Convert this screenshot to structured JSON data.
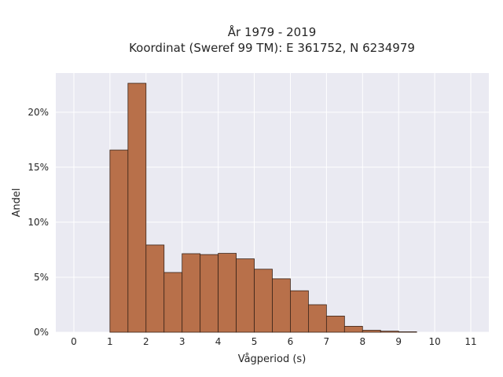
{
  "chart_data": {
    "type": "bar",
    "title": [
      "År 1979 - 2019",
      "Koordinat (Sweref 99 TM): E 361752, N 6234979"
    ],
    "xlabel": "Vågperiod (s)",
    "ylabel": "Andel",
    "xlim": [
      -0.5,
      11.5
    ],
    "ylim": [
      0,
      0.2356
    ],
    "xticks": [
      0,
      1,
      2,
      3,
      4,
      5,
      6,
      7,
      8,
      9,
      10,
      11
    ],
    "xtick_labels": [
      "0",
      "1",
      "2",
      "3",
      "4",
      "5",
      "6",
      "7",
      "8",
      "9",
      "10",
      "11"
    ],
    "yticks": [
      0,
      0.05,
      0.1,
      0.15,
      0.2
    ],
    "ytick_labels": [
      "0%",
      "5%",
      "10%",
      "15%",
      "20%"
    ],
    "bin_width": 0.5,
    "bins": [
      {
        "start": 1.0,
        "value": 0.1656
      },
      {
        "start": 1.5,
        "value": 0.2263
      },
      {
        "start": 2.0,
        "value": 0.0793
      },
      {
        "start": 2.5,
        "value": 0.0543
      },
      {
        "start": 3.0,
        "value": 0.0714
      },
      {
        "start": 3.5,
        "value": 0.0706
      },
      {
        "start": 4.0,
        "value": 0.0717
      },
      {
        "start": 4.5,
        "value": 0.0667
      },
      {
        "start": 5.0,
        "value": 0.0573
      },
      {
        "start": 5.5,
        "value": 0.0486
      },
      {
        "start": 6.0,
        "value": 0.0377
      },
      {
        "start": 6.5,
        "value": 0.025
      },
      {
        "start": 7.0,
        "value": 0.0147
      },
      {
        "start": 7.5,
        "value": 0.0054
      },
      {
        "start": 8.0,
        "value": 0.0018
      },
      {
        "start": 8.5,
        "value": 0.001
      },
      {
        "start": 9.0,
        "value": 0.0004
      }
    ],
    "grid": true,
    "legend": "none",
    "colors": {
      "bar_fill": "#b8704a",
      "bar_edge": "#3a2418",
      "plot_background": "#eaeaf2",
      "grid": "#ffffff"
    }
  }
}
